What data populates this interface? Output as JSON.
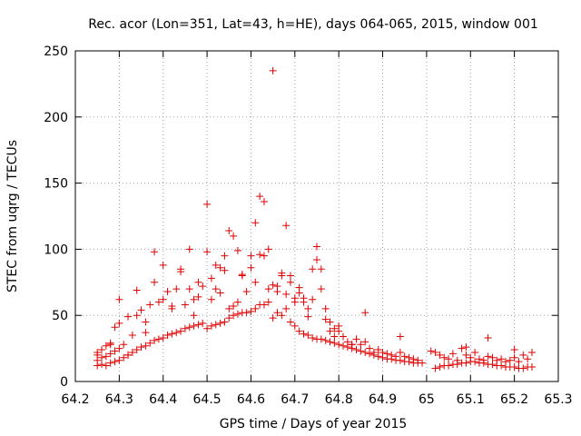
{
  "chart_data": {
    "type": "scatter",
    "title": "Rec. acor (Lon=351, Lat=43, h=HE), days 064-065, 2015, window 001",
    "xlabel": "GPS time / Days of year 2015",
    "ylabel": "STEC from uqrg / TECUs",
    "xlim": [
      64.2,
      65.3
    ],
    "ylim": [
      0,
      250
    ],
    "xticks": [
      "64.2",
      "64.3",
      "64.4",
      "64.5",
      "64.6",
      "64.7",
      "64.8",
      "64.9",
      "65",
      "65.1",
      "65.2",
      "65.3"
    ],
    "yticks": [
      "0",
      "50",
      "100",
      "150",
      "200",
      "250"
    ],
    "grid": true,
    "marker": "+",
    "color": "#e00000",
    "series": [
      {
        "name": "STEC",
        "x": [
          64.25,
          64.25,
          64.25,
          64.25,
          64.26,
          64.26,
          64.26,
          64.27,
          64.27,
          64.27,
          64.28,
          64.28,
          64.28,
          64.29,
          64.29,
          64.29,
          64.3,
          64.3,
          64.3,
          64.31,
          64.31,
          64.32,
          64.32,
          64.33,
          64.33,
          64.34,
          64.34,
          64.35,
          64.35,
          64.36,
          64.36,
          64.37,
          64.37,
          64.38,
          64.38,
          64.39,
          64.39,
          64.4,
          64.4,
          64.41,
          64.41,
          64.42,
          64.42,
          64.43,
          64.43,
          64.44,
          64.44,
          64.45,
          64.45,
          64.46,
          64.46,
          64.47,
          64.47,
          64.48,
          64.48,
          64.49,
          64.49,
          64.5,
          64.5,
          64.51,
          64.51,
          64.52,
          64.52,
          64.53,
          64.53,
          64.54,
          64.54,
          64.55,
          64.55,
          64.56,
          64.56,
          64.57,
          64.57,
          64.58,
          64.58,
          64.59,
          64.59,
          64.6,
          64.6,
          64.61,
          64.61,
          64.62,
          64.62,
          64.63,
          64.63,
          64.64,
          64.64,
          64.65,
          64.65,
          64.66,
          64.66,
          64.67,
          64.67,
          64.68,
          64.68,
          64.69,
          64.69,
          64.7,
          64.7,
          64.71,
          64.71,
          64.72,
          64.72,
          64.73,
          64.73,
          64.74,
          64.74,
          64.75,
          64.75,
          64.76,
          64.76,
          64.77,
          64.77,
          64.78,
          64.78,
          64.79,
          64.79,
          64.8,
          64.8,
          64.81,
          64.81,
          64.82,
          64.82,
          64.83,
          64.83,
          64.84,
          64.84,
          64.85,
          64.85,
          64.86,
          64.86,
          64.87,
          64.87,
          64.88,
          64.88,
          64.89,
          64.89,
          64.9,
          64.9,
          64.91,
          64.91,
          64.92,
          64.92,
          64.93,
          64.93,
          64.94,
          64.94,
          64.95,
          64.95,
          64.96,
          64.96,
          64.97,
          64.97,
          64.98,
          64.98,
          64.99,
          65.02,
          65.02,
          65.03,
          65.03,
          65.04,
          65.04,
          65.05,
          65.05,
          65.06,
          65.06,
          65.07,
          65.07,
          65.08,
          65.08,
          65.09,
          65.09,
          65.1,
          65.1,
          65.11,
          65.11,
          65.12,
          65.12,
          65.13,
          65.13,
          65.14,
          65.14,
          65.15,
          65.15,
          65.16,
          65.16,
          65.17,
          65.17,
          65.18,
          65.18,
          65.19,
          65.19,
          65.2,
          65.2,
          65.21,
          65.21,
          65.22,
          65.22,
          65.23,
          65.23,
          65.24,
          65.24,
          64.3,
          64.34,
          64.38,
          64.4,
          64.44,
          64.46,
          64.48,
          64.5,
          64.51,
          64.52,
          64.54,
          64.55,
          64.56,
          64.58,
          64.6,
          64.62,
          64.63,
          64.65,
          64.66,
          64.68,
          64.69,
          64.7,
          64.72,
          64.74,
          64.75,
          64.76,
          64.78,
          64.8,
          64.86,
          64.94,
          65.01,
          65.09,
          65.14,
          65.2,
          64.28,
          64.32,
          64.36,
          64.42,
          64.47,
          64.53,
          64.57,
          64.61,
          64.64,
          64.67,
          64.71,
          64.73,
          64.77,
          64.79,
          64.83
        ],
        "y": [
          12,
          16,
          20,
          22,
          13,
          18,
          24,
          12,
          19,
          27,
          14,
          21,
          29,
          15,
          23,
          41,
          16,
          25,
          44,
          18,
          28,
          20,
          49,
          22,
          35,
          24,
          50,
          26,
          54,
          27,
          45,
          29,
          58,
          31,
          75,
          32,
          60,
          33,
          62,
          35,
          68,
          36,
          55,
          37,
          70,
          38,
          85,
          40,
          58,
          41,
          100,
          42,
          62,
          43,
          75,
          44,
          72,
          40,
          98,
          42,
          78,
          43,
          70,
          44,
          86,
          45,
          95,
          48,
          55,
          50,
          110,
          51,
          60,
          52,
          80,
          52,
          68,
          53,
          95,
          55,
          120,
          58,
          140,
          58,
          95,
          60,
          70,
          48,
          235,
          52,
          72,
          50,
          80,
          55,
          118,
          45,
          75,
          42,
          63,
          38,
          67,
          36,
          60,
          35,
          55,
          33,
          85,
          32,
          102,
          32,
          70,
          31,
          55,
          30,
          45,
          29,
          40,
          28,
          38,
          27,
          34,
          26,
          30,
          25,
          28,
          24,
          32,
          23,
          28,
          22,
          30,
          21,
          25,
          20,
          22,
          19,
          24,
          18,
          22,
          17,
          21,
          17,
          20,
          16,
          19,
          16,
          22,
          15,
          19,
          15,
          18,
          14,
          17,
          14,
          16,
          14,
          10,
          22,
          11,
          20,
          12,
          18,
          12,
          17,
          13,
          21,
          13,
          16,
          14,
          25,
          14,
          20,
          15,
          18,
          15,
          22,
          14,
          17,
          14,
          16,
          13,
          33,
          13,
          18,
          12,
          16,
          12,
          17,
          11,
          15,
          11,
          16,
          11,
          18,
          10,
          15,
          10,
          20,
          11,
          17,
          11,
          22,
          62,
          69,
          98,
          88,
          83,
          70,
          64,
          134,
          62,
          88,
          84,
          114,
          57,
          81,
          86,
          96,
          136,
          73,
          68,
          66,
          80,
          60,
          63,
          62,
          92,
          85,
          38,
          42,
          52,
          34,
          23,
          26,
          19,
          24,
          28,
          20,
          37,
          57,
          50,
          67,
          99,
          75,
          100,
          82,
          71,
          49,
          47,
          34,
          28
        ]
      }
    ]
  }
}
